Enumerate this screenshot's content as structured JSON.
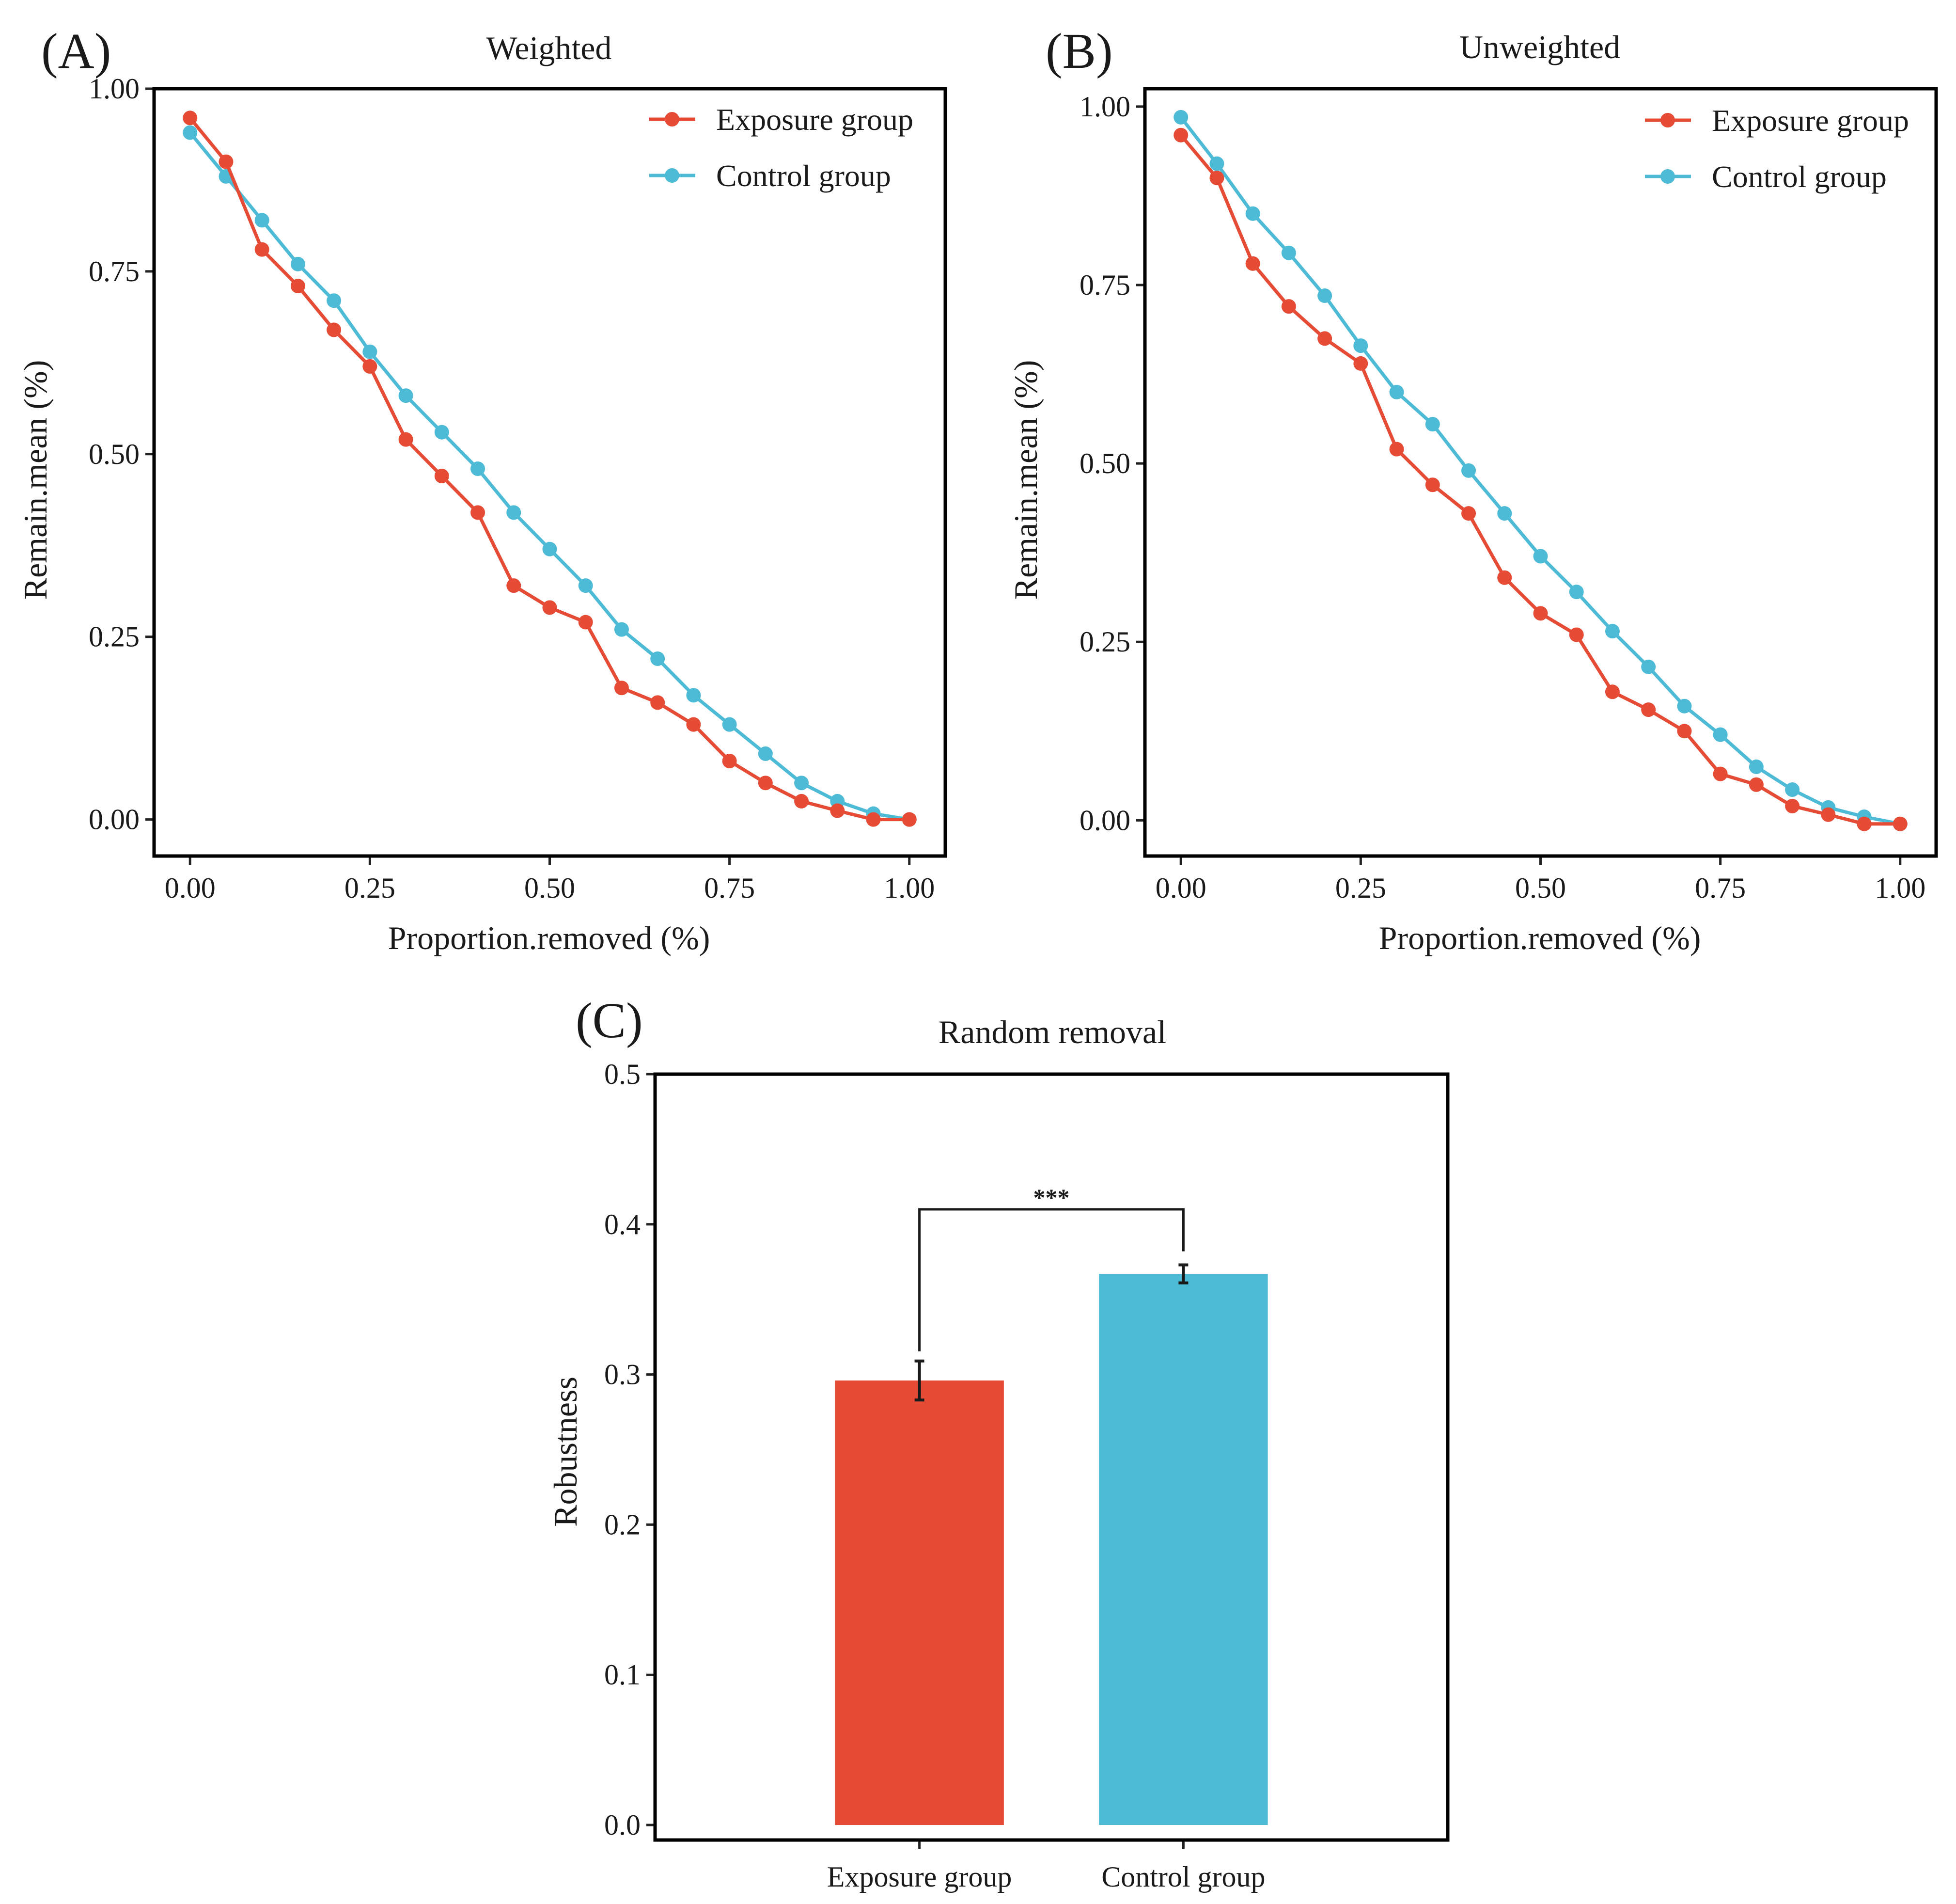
{
  "figure": {
    "charts": [
      {
        "id": "A",
        "panel_label": "(A)"
      },
      {
        "id": "B",
        "panel_label": "(B)"
      },
      {
        "id": "C",
        "panel_label": "(C)"
      }
    ]
  },
  "chart_data": [
    {
      "panel": "(A)",
      "type": "line",
      "title": "Weighted",
      "xlabel": "Proportion.removed (%)",
      "ylabel": "Remain.mean (%)",
      "xlim": [
        -0.05,
        1.05
      ],
      "ylim": [
        -0.05,
        1.0
      ],
      "xticks": [
        0,
        0.25,
        0.5,
        0.75,
        1.0
      ],
      "xtick_labels": [
        "0.00",
        "0.25",
        "0.50",
        "0.75",
        "1.00"
      ],
      "yticks": [
        0,
        0.25,
        0.5,
        0.75,
        1.0
      ],
      "ytick_labels": [
        "0.00",
        "0.25",
        "0.50",
        "0.75",
        "1.00"
      ],
      "legend_position": "top-right",
      "x": [
        0,
        0.05,
        0.1,
        0.15,
        0.2,
        0.25,
        0.3,
        0.35,
        0.4,
        0.45,
        0.5,
        0.55,
        0.6,
        0.65,
        0.7,
        0.75,
        0.8,
        0.85,
        0.9,
        0.95,
        1.0
      ],
      "series": [
        {
          "name": "Exposure group",
          "color": "#E64B35",
          "values": [
            0.96,
            0.9,
            0.78,
            0.73,
            0.67,
            0.62,
            0.52,
            0.47,
            0.42,
            0.32,
            0.29,
            0.27,
            0.18,
            0.16,
            0.13,
            0.08,
            0.05,
            0.025,
            0.012,
            0.0,
            0.0
          ]
        },
        {
          "name": "Control group",
          "color": "#4DBBD5",
          "values": [
            0.94,
            0.88,
            0.82,
            0.76,
            0.71,
            0.64,
            0.58,
            0.53,
            0.48,
            0.42,
            0.37,
            0.32,
            0.26,
            0.22,
            0.17,
            0.13,
            0.09,
            0.05,
            0.025,
            0.008,
            0.0
          ]
        }
      ]
    },
    {
      "panel": "(B)",
      "type": "line",
      "title": "Unweighted",
      "xlabel": "Proportion.removed (%)",
      "ylabel": "Remain.mean (%)",
      "xlim": [
        -0.05,
        1.05
      ],
      "ylim": [
        -0.05,
        1.025
      ],
      "xticks": [
        0,
        0.25,
        0.5,
        0.75,
        1.0
      ],
      "xtick_labels": [
        "0.00",
        "0.25",
        "0.50",
        "0.75",
        "1.00"
      ],
      "yticks": [
        0,
        0.25,
        0.5,
        0.75,
        1.0
      ],
      "ytick_labels": [
        "0.00",
        "0.25",
        "0.50",
        "0.75",
        "1.00"
      ],
      "legend_position": "top-right",
      "x": [
        0,
        0.05,
        0.1,
        0.15,
        0.2,
        0.25,
        0.3,
        0.35,
        0.4,
        0.45,
        0.5,
        0.55,
        0.6,
        0.65,
        0.7,
        0.75,
        0.8,
        0.85,
        0.9,
        0.95,
        1.0
      ],
      "series": [
        {
          "name": "Exposure group",
          "color": "#E64B35",
          "values": [
            0.96,
            0.9,
            0.78,
            0.72,
            0.675,
            0.64,
            0.52,
            0.47,
            0.43,
            0.34,
            0.29,
            0.26,
            0.18,
            0.155,
            0.125,
            0.065,
            0.05,
            0.02,
            0.008,
            -0.005,
            -0.005
          ]
        },
        {
          "name": "Control group",
          "color": "#4DBBD5",
          "values": [
            0.985,
            0.92,
            0.85,
            0.795,
            0.735,
            0.665,
            0.6,
            0.555,
            0.49,
            0.43,
            0.37,
            0.32,
            0.265,
            0.215,
            0.16,
            0.12,
            0.075,
            0.043,
            0.018,
            0.005,
            -0.005
          ]
        }
      ]
    },
    {
      "panel": "(C)",
      "type": "bar",
      "title": "Random removal",
      "xlabel": "",
      "ylabel": "Robustness",
      "ylim": [
        -0.01,
        0.5
      ],
      "yticks": [
        0,
        0.1,
        0.2,
        0.3,
        0.4,
        0.5
      ],
      "ytick_labels": [
        "0.0",
        "0.1",
        "0.2",
        "0.3",
        "0.4",
        "0.5"
      ],
      "categories": [
        "Exposure group",
        "Control group"
      ],
      "values": [
        0.296,
        0.367
      ],
      "errors": [
        0.013,
        0.006
      ],
      "colors": [
        "#E64B35",
        "#4DBBD5"
      ],
      "significance": {
        "label": "***",
        "between": [
          0,
          1
        ],
        "y": 0.41
      }
    }
  ]
}
